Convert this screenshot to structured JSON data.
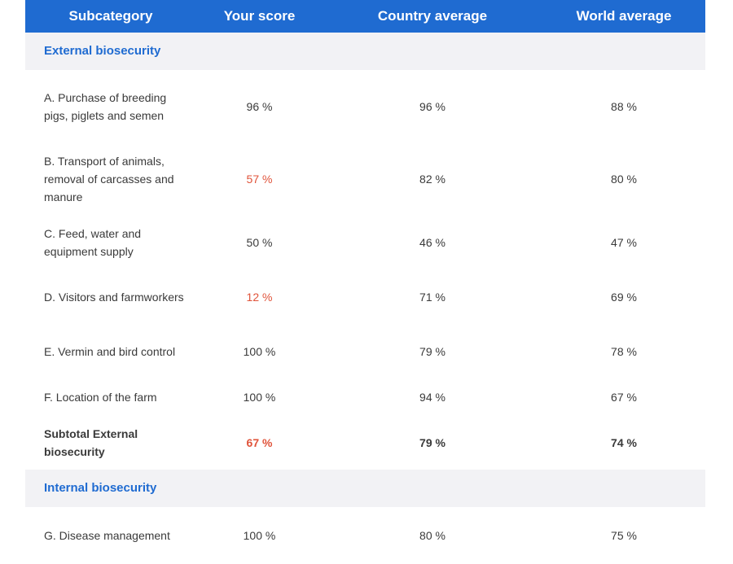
{
  "header": {
    "subcategory": "Subcategory",
    "your_score": "Your score",
    "country_average": "Country average",
    "world_average": "World average"
  },
  "colors": {
    "header_bg": "#1f6bd1",
    "section_bg": "#f2f2f5",
    "low_score": "#e0533a"
  },
  "sections": [
    {
      "title": "External biosecurity",
      "rows": [
        {
          "name": "A. Purchase of breeding pigs, piglets and semen",
          "your": "96 %",
          "country": "96 %",
          "world": "88 %",
          "low": false
        },
        {
          "name": "B. Transport of animals, removal of carcasses and manure",
          "your": "57 %",
          "country": "82 %",
          "world": "80 %",
          "low": true
        },
        {
          "name": "C. Feed, water and equipment supply",
          "your": "50 %",
          "country": "46 %",
          "world": "47 %",
          "low": false
        },
        {
          "name": "D. Visitors and farmworkers",
          "your": "12 %",
          "country": "71 %",
          "world": "69 %",
          "low": true
        },
        {
          "name": "E. Vermin and bird control",
          "your": "100 %",
          "country": "79 %",
          "world": "78 %",
          "low": false
        },
        {
          "name": "F. Location of the farm",
          "your": "100 %",
          "country": "94 %",
          "world": "67 %",
          "low": false
        }
      ],
      "subtotal": {
        "name": "Subtotal External biosecurity",
        "your": "67 %",
        "country": "79 %",
        "world": "74 %",
        "low": true
      }
    },
    {
      "title": "Internal biosecurity",
      "rows": [
        {
          "name": "G. Disease management",
          "your": "100 %",
          "country": "80 %",
          "world": "75 %",
          "low": false
        }
      ]
    }
  ]
}
